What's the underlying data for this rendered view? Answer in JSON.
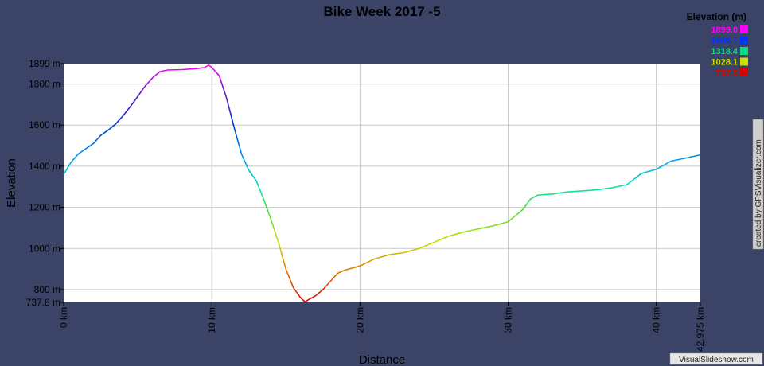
{
  "chart_data": {
    "type": "line",
    "title": "Bike Week 2017 -5",
    "xlabel": "Distance",
    "ylabel": "Elevation",
    "xlim": [
      0,
      42.975
    ],
    "ylim": [
      737.8,
      1899
    ],
    "x_ticks": [
      {
        "value": 0,
        "label": "0 km"
      },
      {
        "value": 10,
        "label": "10 km"
      },
      {
        "value": 20,
        "label": "20 km"
      },
      {
        "value": 30,
        "label": "30 km"
      },
      {
        "value": 40,
        "label": "40 km"
      },
      {
        "value": 42.975,
        "label": "42.975 km"
      }
    ],
    "y_ticks": [
      {
        "value": 737.8,
        "label": "737.8 m"
      },
      {
        "value": 800,
        "label": "800 m"
      },
      {
        "value": 1000,
        "label": "1000 m"
      },
      {
        "value": 1200,
        "label": "1200 m"
      },
      {
        "value": 1400,
        "label": "1400 m"
      },
      {
        "value": 1600,
        "label": "1600 m"
      },
      {
        "value": 1800,
        "label": "1800 m"
      },
      {
        "value": 1899,
        "label": "1899 m"
      }
    ],
    "grid": true,
    "legend": {
      "title": "Elevation (m)",
      "placement": "top-right",
      "entries": [
        {
          "label": "1899.0",
          "color": "#ff00ff"
        },
        {
          "label": "1608.7",
          "color": "#0033ff"
        },
        {
          "label": "1318.4",
          "color": "#00e08a"
        },
        {
          "label": "1028.1",
          "color": "#c8e000"
        },
        {
          "label": "737.8",
          "color": "#dd0000"
        }
      ]
    },
    "series": [
      {
        "x": [
          0,
          0.5,
          1,
          2,
          2.5,
          3,
          3.5,
          4,
          4.5,
          5,
          5.5,
          6,
          6.5,
          7,
          8,
          9,
          9.5,
          9.8,
          10,
          10.5,
          11,
          11.5,
          12,
          12.5,
          13,
          13.5,
          14,
          14.5,
          15,
          15.5,
          16,
          16.3,
          16.5,
          17,
          17.5,
          18,
          18.5,
          19,
          19.5,
          20,
          21,
          22,
          23,
          24,
          25,
          26,
          27,
          28,
          29,
          30,
          31,
          31.5,
          32,
          33,
          34,
          35,
          36,
          37,
          38,
          39,
          40,
          41,
          42,
          42.975
        ],
        "y": [
          1360,
          1420,
          1460,
          1510,
          1550,
          1575,
          1605,
          1645,
          1690,
          1740,
          1790,
          1830,
          1860,
          1868,
          1870,
          1875,
          1880,
          1892,
          1880,
          1840,
          1730,
          1590,
          1460,
          1380,
          1330,
          1240,
          1140,
          1030,
          900,
          810,
          760,
          740,
          750,
          770,
          800,
          840,
          880,
          895,
          905,
          915,
          950,
          970,
          980,
          1000,
          1030,
          1060,
          1080,
          1095,
          1110,
          1130,
          1190,
          1240,
          1260,
          1265,
          1275,
          1280,
          1285,
          1295,
          1310,
          1365,
          1385,
          1425,
          1440,
          1455
        ]
      }
    ]
  },
  "credits": {
    "side": "created by GPSVisualizer.com",
    "bottom": "VisualSlideshow.com"
  }
}
